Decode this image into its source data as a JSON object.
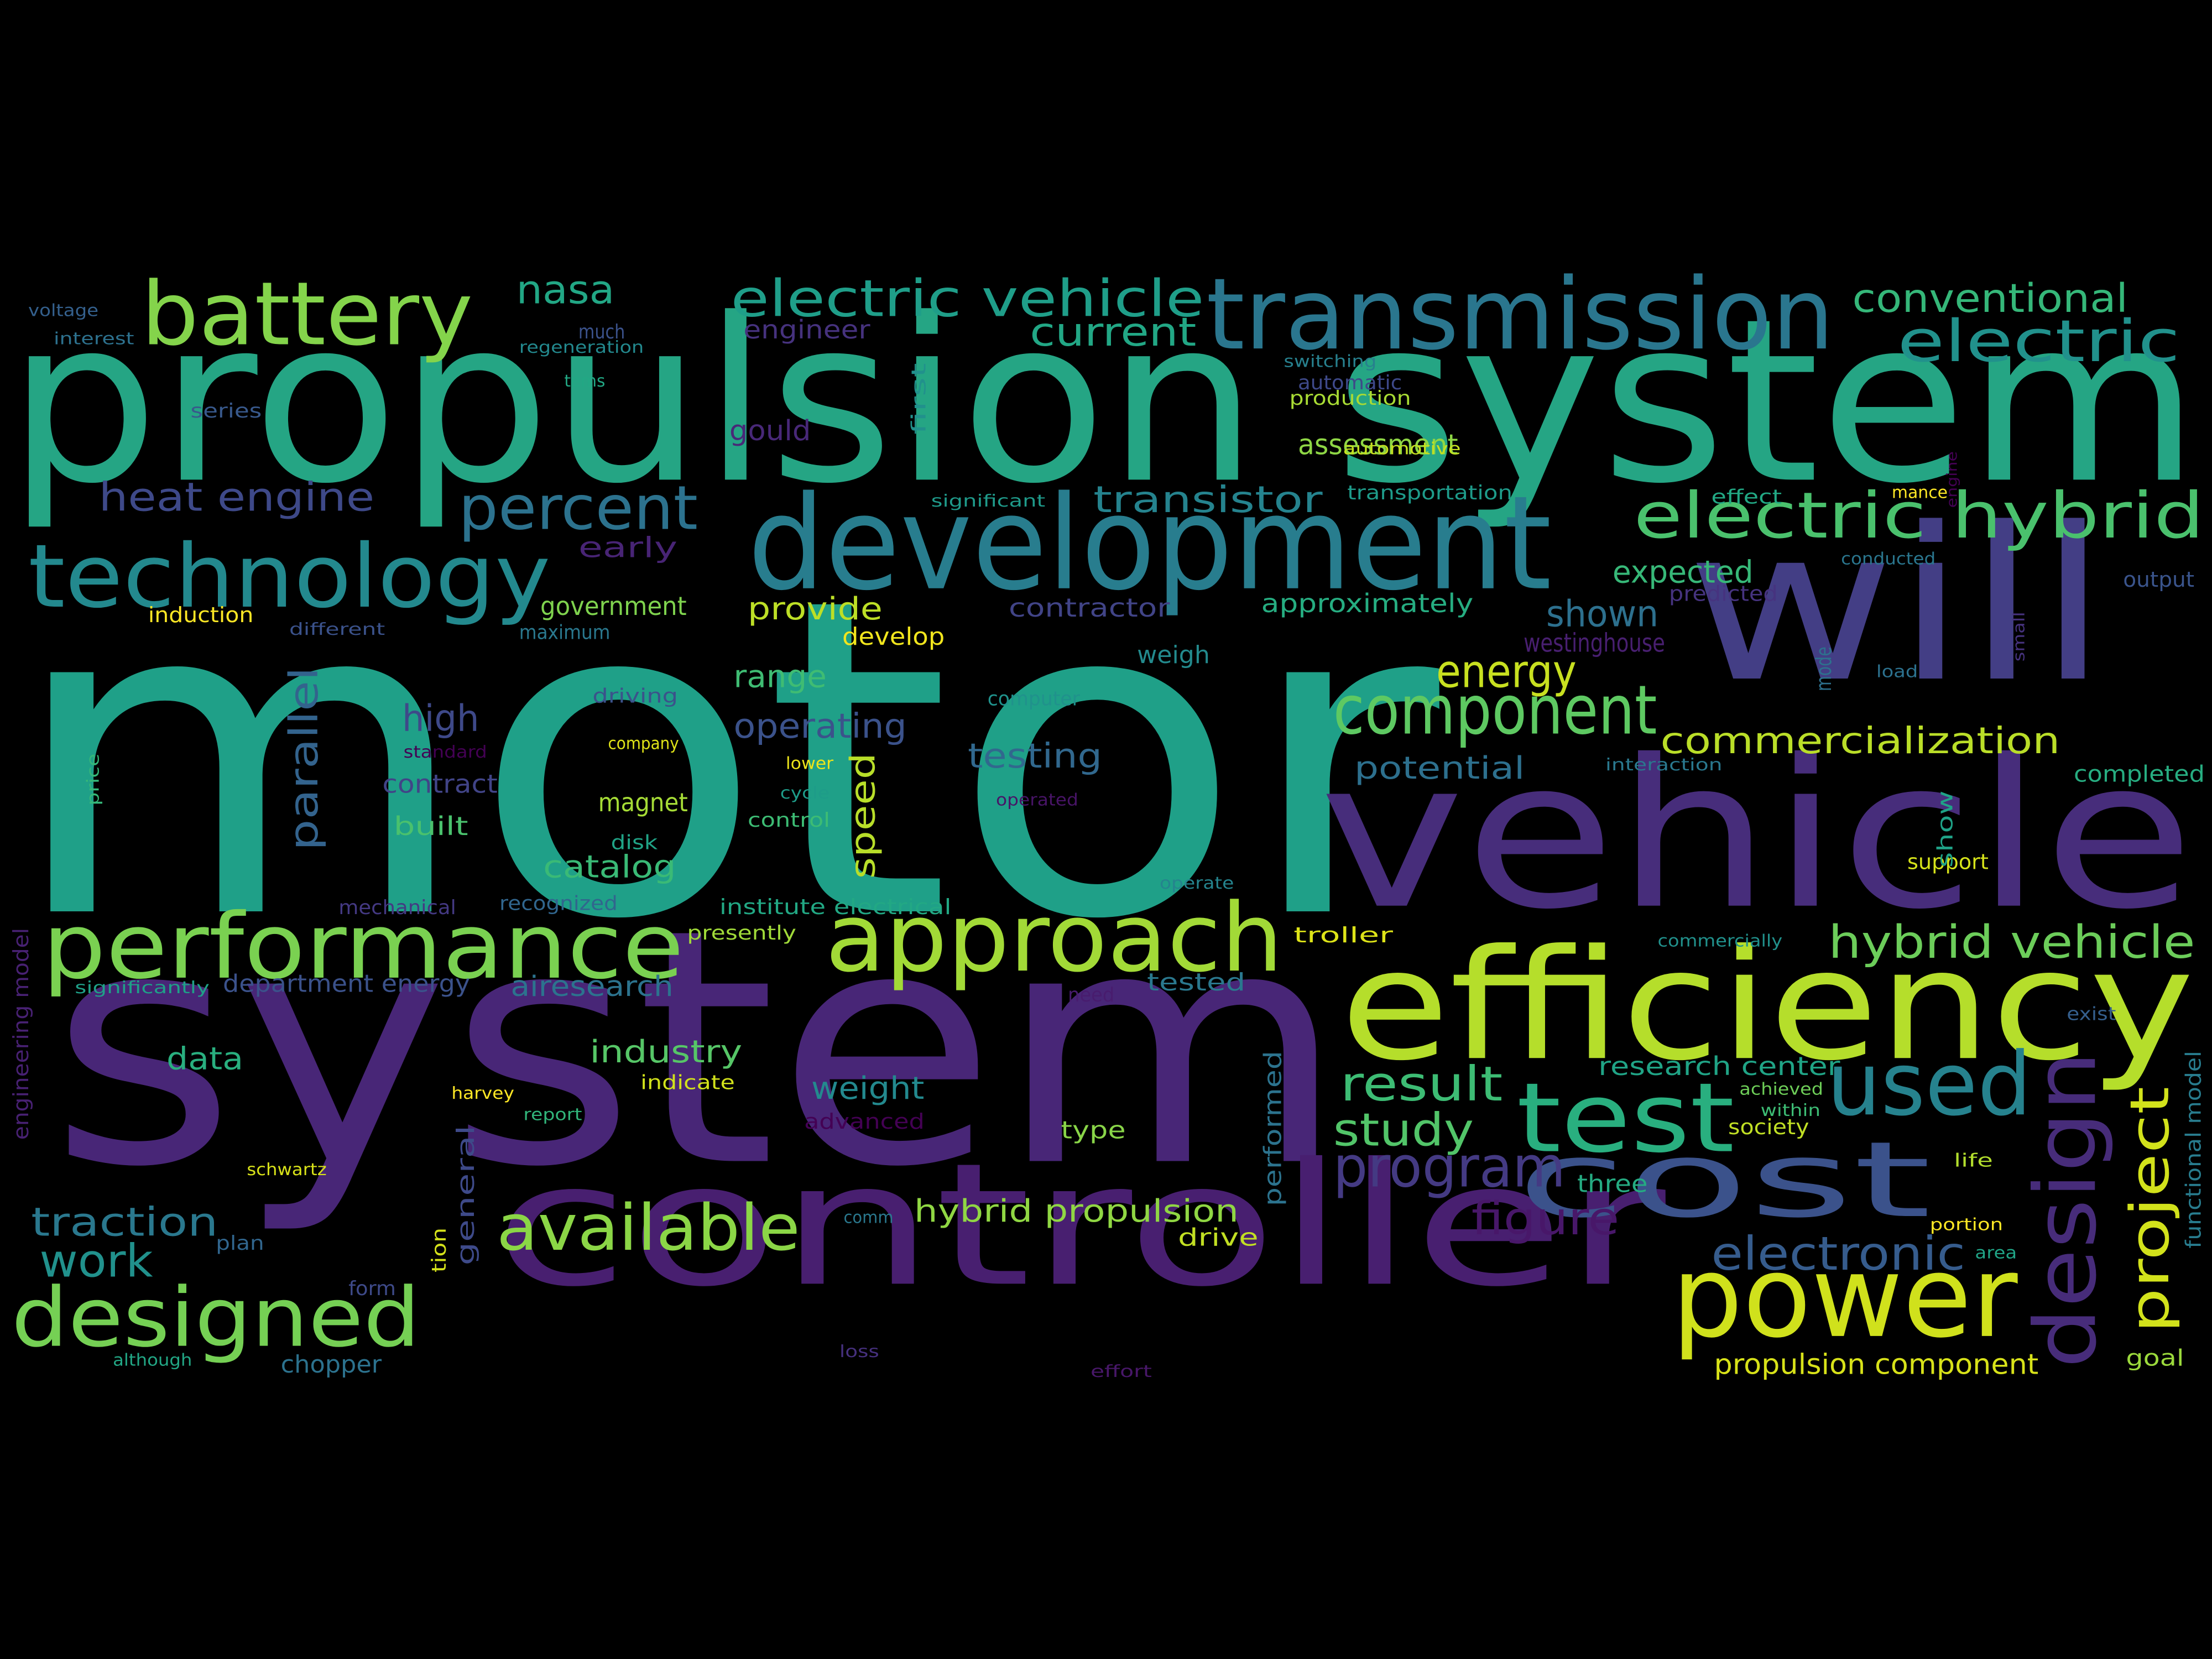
{
  "background": "#000000",
  "palette": [
    "#440154",
    "#472c7a",
    "#3b518b",
    "#2c718e",
    "#21908d",
    "#27ad81",
    "#5cc863",
    "#aadc32",
    "#fde725"
  ],
  "words": [
    {
      "text": "motor",
      "color": "#1fa088"
    },
    {
      "text": "system",
      "color": "#482677"
    },
    {
      "text": "propulsion system",
      "color": "#25a584"
    },
    {
      "text": "vehicle",
      "color": "#472d7b"
    },
    {
      "text": "will",
      "color": "#433e85"
    },
    {
      "text": "controller",
      "color": "#481f70"
    },
    {
      "text": "development",
      "color": "#287d8e"
    },
    {
      "text": "efficiency",
      "color": "#b5de2b"
    },
    {
      "text": "transmission",
      "color": "#2a768e"
    },
    {
      "text": "technology",
      "color": "#23898e"
    },
    {
      "text": "approach",
      "color": "#a2da37"
    },
    {
      "text": "performance",
      "color": "#7ad151"
    },
    {
      "text": "cost",
      "color": "#3b528b"
    },
    {
      "text": "power",
      "color": "#d0e11c"
    },
    {
      "text": "battery",
      "color": "#84d44b"
    },
    {
      "text": "designed",
      "color": "#75d054"
    },
    {
      "text": "test",
      "color": "#29af7f"
    },
    {
      "text": "used",
      "color": "#26828e"
    },
    {
      "text": "design",
      "color": "#472c7a"
    },
    {
      "text": "component",
      "color": "#5ec962"
    },
    {
      "text": "electric hybrid",
      "color": "#4ac16d"
    },
    {
      "text": "percent",
      "color": "#2c728e"
    },
    {
      "text": "electric vehicle",
      "color": "#1f9e89"
    },
    {
      "text": "electric",
      "color": "#21918c"
    },
    {
      "text": "available",
      "color": "#8bd646"
    },
    {
      "text": "project",
      "color": "#d2e21b"
    },
    {
      "text": "program",
      "color": "#443a83"
    },
    {
      "text": "hybrid vehicle",
      "color": "#6ccd5a"
    },
    {
      "text": "result",
      "color": "#3dbc74"
    },
    {
      "text": "study",
      "color": "#52c569"
    },
    {
      "text": "electronic",
      "color": "#365c8d"
    },
    {
      "text": "conventional",
      "color": "#35b779"
    },
    {
      "text": "energy",
      "color": "#c8e020"
    },
    {
      "text": "commercialization",
      "color": "#bade28"
    },
    {
      "text": "nasa",
      "color": "#22a785"
    },
    {
      "text": "current",
      "color": "#22a785"
    },
    {
      "text": "heat engine",
      "color": "#3e4989"
    },
    {
      "text": "transistor",
      "color": "#25838e"
    },
    {
      "text": "figure",
      "color": "#481769"
    },
    {
      "text": "traction",
      "color": "#2a788e"
    },
    {
      "text": "work",
      "color": "#21918c"
    },
    {
      "text": "parallel",
      "color": "#33638d"
    },
    {
      "text": "high",
      "color": "#3e4989"
    },
    {
      "text": "operating",
      "color": "#3b528b"
    },
    {
      "text": "testing",
      "color": "#31688e"
    },
    {
      "text": "potential",
      "color": "#2d708e"
    },
    {
      "text": "speed",
      "color": "#b8de29"
    },
    {
      "text": "shown",
      "color": "#2d708e"
    },
    {
      "text": "range",
      "color": "#3fbc73"
    },
    {
      "text": "catalog",
      "color": "#3aba76"
    },
    {
      "text": "weight",
      "color": "#23898e"
    },
    {
      "text": "industry",
      "color": "#56c667"
    },
    {
      "text": "hybrid propulsion",
      "color": "#90d743"
    },
    {
      "text": "expected",
      "color": "#37b878"
    },
    {
      "text": "provide",
      "color": "#bddf26"
    },
    {
      "text": "assessment",
      "color": "#8ed645"
    },
    {
      "text": "propulsion component",
      "color": "#d8e219"
    },
    {
      "text": "airesearch",
      "color": "#2c738e"
    },
    {
      "text": "data",
      "color": "#29af7f"
    },
    {
      "text": "gould",
      "color": "#482878"
    },
    {
      "text": "early",
      "color": "#482475"
    },
    {
      "text": "engineer",
      "color": "#46327e"
    },
    {
      "text": "westinghouse",
      "color": "#481f70"
    },
    {
      "text": "contractor",
      "color": "#414487"
    },
    {
      "text": "approximately",
      "color": "#26ad81"
    },
    {
      "text": "research center",
      "color": "#20a486"
    },
    {
      "text": "contract",
      "color": "#414487"
    },
    {
      "text": "built",
      "color": "#4ac16d"
    },
    {
      "text": "magnet",
      "color": "#a5db36"
    },
    {
      "text": "government",
      "color": "#7fd34e"
    },
    {
      "text": "department energy",
      "color": "#3b528b"
    },
    {
      "text": "develop",
      "color": "#f1e51d"
    },
    {
      "text": "weigh",
      "color": "#238a8d"
    },
    {
      "text": "three",
      "color": "#25ab82"
    },
    {
      "text": "general",
      "color": "#3e4a89"
    },
    {
      "text": "performed",
      "color": "#2c738e"
    },
    {
      "text": "type",
      "color": "#89d548"
    },
    {
      "text": "drive",
      "color": "#c2df23"
    },
    {
      "text": "tested",
      "color": "#2a788e"
    },
    {
      "text": "chopper",
      "color": "#2c728e"
    },
    {
      "text": "completed",
      "color": "#27ad81"
    },
    {
      "text": "goal",
      "color": "#9bd93c"
    },
    {
      "text": "functional model",
      "color": "#287c8e"
    },
    {
      "text": "engineering model",
      "color": "#482173"
    },
    {
      "text": "institute electrical",
      "color": "#22a884"
    },
    {
      "text": "troller",
      "color": "#dde318"
    },
    {
      "text": "predicted",
      "color": "#46337f"
    },
    {
      "text": "output",
      "color": "#3a548c"
    },
    {
      "text": "advanced",
      "color": "#440154"
    },
    {
      "text": "society",
      "color": "#c0df25"
    },
    {
      "text": "support",
      "color": "#d5e21a"
    },
    {
      "text": "show",
      "color": "#1fa287"
    },
    {
      "text": "mode",
      "color": "#2d718e"
    },
    {
      "text": "induction",
      "color": "#fde725"
    },
    {
      "text": "interest",
      "color": "#2d718e"
    },
    {
      "text": "voltage",
      "color": "#34608d"
    },
    {
      "text": "regeneration",
      "color": "#23898e"
    },
    {
      "text": "series",
      "color": "#38598c"
    },
    {
      "text": "tems",
      "color": "#22a884"
    },
    {
      "text": "much",
      "color": "#3b528b"
    },
    {
      "text": "first",
      "color": "#21918c"
    },
    {
      "text": "switching",
      "color": "#27808e"
    },
    {
      "text": "automatic",
      "color": "#3e4989"
    },
    {
      "text": "production",
      "color": "#a8db34"
    },
    {
      "text": "automotive",
      "color": "#c5e021"
    },
    {
      "text": "transportation",
      "color": "#1e9b8a"
    },
    {
      "text": "effect",
      "color": "#22a884"
    },
    {
      "text": "mance",
      "color": "#fde725"
    },
    {
      "text": "engine",
      "color": "#440154"
    },
    {
      "text": "significant",
      "color": "#1f9a8a"
    },
    {
      "text": "conducted",
      "color": "#2a768e"
    },
    {
      "text": "different",
      "color": "#3b528b"
    },
    {
      "text": "maximum",
      "color": "#2a788e"
    },
    {
      "text": "driving",
      "color": "#3b528b"
    },
    {
      "text": "computer",
      "color": "#20928c"
    },
    {
      "text": "load",
      "color": "#2c718e"
    },
    {
      "text": "small",
      "color": "#46327e"
    },
    {
      "text": "standard",
      "color": "#440154"
    },
    {
      "text": "company",
      "color": "#dfe318"
    },
    {
      "text": "lower",
      "color": "#ece51b"
    },
    {
      "text": "cycle",
      "color": "#1e9c89"
    },
    {
      "text": "operated",
      "color": "#481467"
    },
    {
      "text": "interaction",
      "color": "#2a788e"
    },
    {
      "text": "price",
      "color": "#35b779"
    },
    {
      "text": "control",
      "color": "#3dbc74"
    },
    {
      "text": "disk",
      "color": "#20a386"
    },
    {
      "text": "mechanical",
      "color": "#443983"
    },
    {
      "text": "recognized",
      "color": "#31668e"
    },
    {
      "text": "operate",
      "color": "#25848e"
    },
    {
      "text": "presently",
      "color": "#a0da39"
    },
    {
      "text": "commercially",
      "color": "#21918c"
    },
    {
      "text": "significantly",
      "color": "#1fa088"
    },
    {
      "text": "need",
      "color": "#481c6e"
    },
    {
      "text": "exist",
      "color": "#355f8d"
    },
    {
      "text": "harvey",
      "color": "#fde725"
    },
    {
      "text": "indicate",
      "color": "#d2e21b"
    },
    {
      "text": "report",
      "color": "#31b57b"
    },
    {
      "text": "achieved",
      "color": "#6ece58"
    },
    {
      "text": "within",
      "color": "#3dbc74"
    },
    {
      "text": "schwartz",
      "color": "#d8e219"
    },
    {
      "text": "life",
      "color": "#b2dd2d"
    },
    {
      "text": "comm",
      "color": "#2a788e"
    },
    {
      "text": "plan",
      "color": "#31668e"
    },
    {
      "text": "tion",
      "color": "#d5e21a"
    },
    {
      "text": "portion",
      "color": "#fde725"
    },
    {
      "text": "area",
      "color": "#20a486"
    },
    {
      "text": "form",
      "color": "#3e4a89"
    },
    {
      "text": "although",
      "color": "#22a785"
    },
    {
      "text": "loss",
      "color": "#46307e"
    },
    {
      "text": "effort",
      "color": "#481769"
    }
  ]
}
